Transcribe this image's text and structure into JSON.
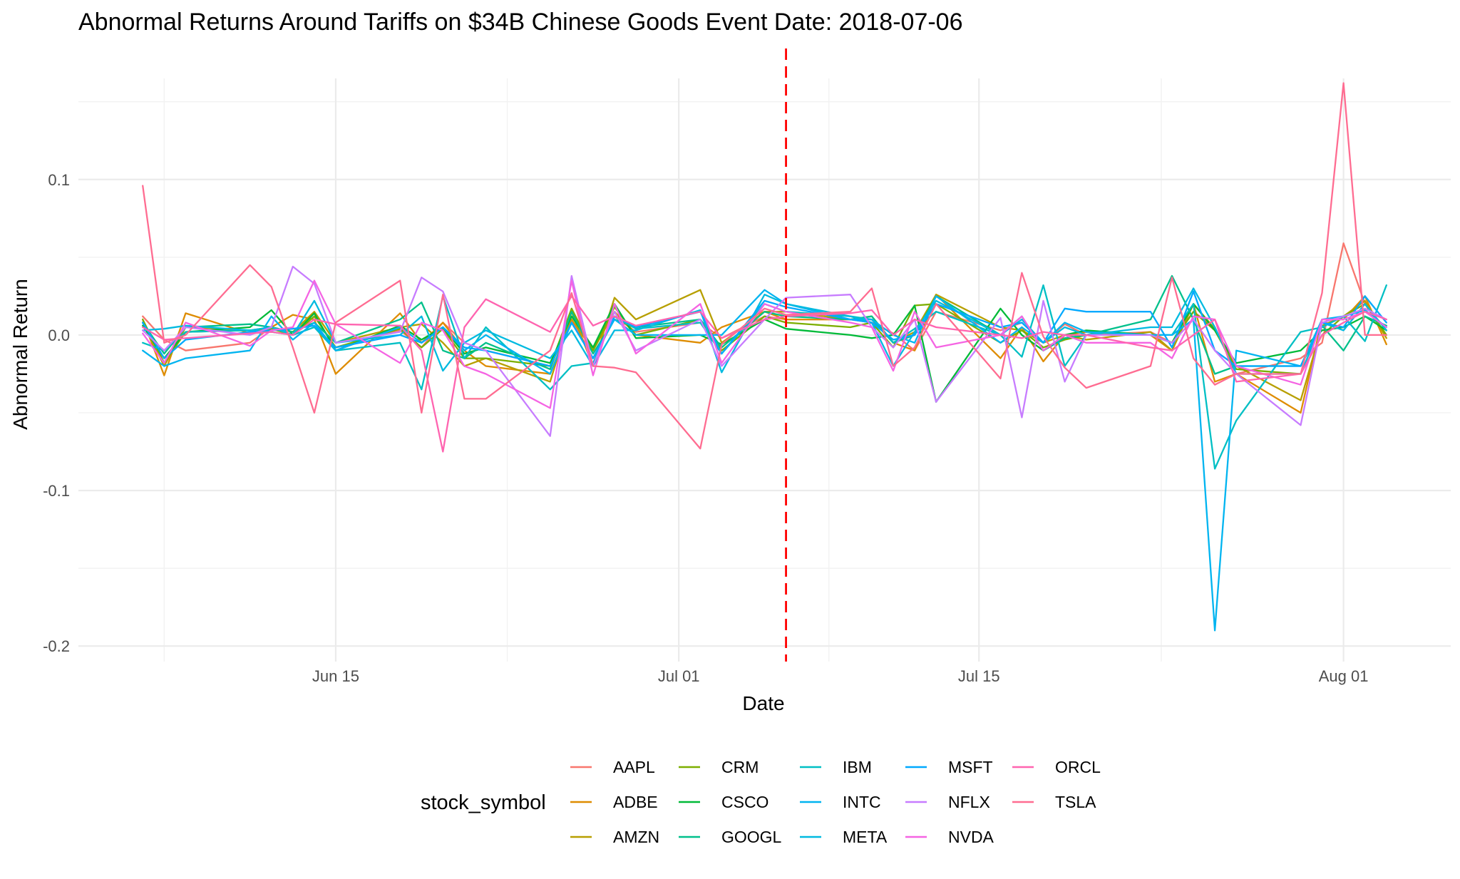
{
  "chart_data": {
    "type": "line",
    "title": "Abnormal Returns Around Tariffs on $34B Chinese Goods Event Date: 2018-07-06",
    "xlabel": "Date",
    "ylabel": "Abnormal Return",
    "legend_title": "stock_symbol",
    "legend_position": "bottom",
    "grid": true,
    "event_date": "2018-07-06",
    "event_line_color": "#FF0000",
    "x_type": "date",
    "xlim": [
      "2018-06-03",
      "2018-08-06"
    ],
    "ylim": [
      -0.21,
      0.165
    ],
    "y_ticks": [
      {
        "value": 0.1,
        "label": "0.1"
      },
      {
        "value": 0.0,
        "label": "0.0"
      },
      {
        "value": -0.1,
        "label": "-0.1"
      },
      {
        "value": -0.2,
        "label": "-0.2"
      }
    ],
    "x_ticks": [
      {
        "date": "2018-06-15",
        "label": "Jun 15"
      },
      {
        "date": "2018-07-01",
        "label": "Jul 01"
      },
      {
        "date": "2018-07-15",
        "label": "Jul 15"
      },
      {
        "date": "2018-08-01",
        "label": "Aug 01"
      }
    ],
    "dates": [
      "2018-06-06",
      "2018-06-07",
      "2018-06-08",
      "2018-06-11",
      "2018-06-12",
      "2018-06-13",
      "2018-06-14",
      "2018-06-15",
      "2018-06-18",
      "2018-06-19",
      "2018-06-20",
      "2018-06-21",
      "2018-06-22",
      "2018-06-25",
      "2018-06-26",
      "2018-06-27",
      "2018-06-28",
      "2018-06-29",
      "2018-07-02",
      "2018-07-03",
      "2018-07-05",
      "2018-07-06",
      "2018-07-09",
      "2018-07-10",
      "2018-07-11",
      "2018-07-12",
      "2018-07-13",
      "2018-07-16",
      "2018-07-17",
      "2018-07-18",
      "2018-07-19",
      "2018-07-20",
      "2018-07-23",
      "2018-07-24",
      "2018-07-25",
      "2018-07-26",
      "2018-07-27",
      "2018-07-30",
      "2018-07-31",
      "2018-08-01",
      "2018-08-02",
      "2018-08-03"
    ],
    "series": [
      {
        "name": "AAPL",
        "color": "#F8766D",
        "values": [
          0.012,
          -0.003,
          -0.01,
          -0.005,
          0.005,
          0.0,
          0.012,
          -0.008,
          0.003,
          -0.008,
          0.008,
          -0.005,
          -0.01,
          -0.02,
          0.01,
          -0.015,
          0.012,
          0.002,
          0.008,
          -0.002,
          0.012,
          0.01,
          0.01,
          0.008,
          0.001,
          -0.01,
          0.015,
          0.003,
          0.008,
          -0.005,
          0.007,
          0.0,
          0.002,
          -0.005,
          0.015,
          0.005,
          -0.025,
          -0.015,
          -0.005,
          0.059,
          0.02,
          0.003
        ]
      },
      {
        "name": "ADBE",
        "color": "#DE8C00",
        "values": [
          0.01,
          -0.026,
          0.014,
          0.001,
          0.005,
          0.013,
          0.01,
          -0.025,
          0.014,
          -0.005,
          0.008,
          -0.01,
          -0.02,
          -0.025,
          0.01,
          -0.01,
          0.015,
          0.0,
          -0.005,
          0.005,
          0.015,
          0.01,
          0.01,
          0.012,
          -0.005,
          -0.01,
          0.026,
          -0.015,
          0.005,
          -0.017,
          0.0,
          0.002,
          0.0,
          -0.01,
          0.02,
          -0.03,
          -0.025,
          -0.05,
          0.01,
          0.01,
          0.025,
          -0.006
        ]
      },
      {
        "name": "AMZN",
        "color": "#B79F00",
        "values": [
          0.008,
          -0.02,
          0.005,
          0.003,
          0.005,
          0.002,
          0.015,
          -0.005,
          0.005,
          0.007,
          -0.005,
          -0.02,
          -0.015,
          -0.03,
          0.015,
          -0.02,
          0.024,
          0.01,
          0.029,
          -0.005,
          0.015,
          0.015,
          0.01,
          0.01,
          -0.005,
          0.002,
          0.026,
          0.005,
          0.003,
          -0.005,
          0.0,
          -0.003,
          0.002,
          -0.01,
          0.02,
          0.004,
          -0.02,
          -0.042,
          0.006,
          0.012,
          0.022,
          -0.002
        ]
      },
      {
        "name": "CRM",
        "color": "#7CAE00",
        "values": [
          0.01,
          -0.018,
          0.002,
          0.003,
          0.004,
          0.0,
          0.012,
          -0.008,
          0.004,
          -0.008,
          0.004,
          -0.015,
          -0.015,
          -0.02,
          0.017,
          -0.01,
          0.018,
          0.0,
          0.01,
          -0.01,
          0.012,
          0.008,
          0.005,
          0.008,
          -0.008,
          0.019,
          0.02,
          -0.005,
          0.003,
          -0.008,
          -0.003,
          0.0,
          0.0,
          -0.005,
          0.015,
          0.003,
          -0.022,
          -0.025,
          0.0,
          0.012,
          0.02,
          0.0
        ]
      },
      {
        "name": "CSCO",
        "color": "#00BA38",
        "values": [
          0.006,
          -0.015,
          0.002,
          0.005,
          0.016,
          0.0,
          0.014,
          -0.01,
          0.006,
          -0.003,
          0.005,
          -0.012,
          -0.008,
          -0.018,
          0.012,
          -0.008,
          0.02,
          -0.002,
          0.0,
          -0.006,
          0.01,
          0.004,
          0.0,
          -0.002,
          0.0,
          0.019,
          -0.043,
          0.017,
          0.0,
          -0.01,
          0.0,
          0.003,
          0.0,
          -0.005,
          0.02,
          0.003,
          -0.018,
          -0.01,
          0.003,
          0.005,
          0.012,
          0.003
        ]
      },
      {
        "name": "GOOGL",
        "color": "#00C08B",
        "values": [
          0.008,
          -0.012,
          0.005,
          0.007,
          0.005,
          0.002,
          0.008,
          -0.005,
          0.01,
          0.021,
          -0.01,
          -0.015,
          -0.005,
          -0.022,
          0.015,
          -0.012,
          0.01,
          0.005,
          0.01,
          -0.008,
          0.015,
          0.012,
          0.01,
          0.012,
          -0.005,
          0.0,
          0.025,
          0.0,
          0.012,
          -0.01,
          -0.002,
          0.0,
          0.01,
          0.038,
          0.01,
          -0.025,
          -0.02,
          -0.02,
          0.006,
          -0.01,
          0.012,
          0.006
        ]
      },
      {
        "name": "IBM",
        "color": "#00BFC4",
        "values": [
          -0.005,
          -0.01,
          0.002,
          0.003,
          0.002,
          0.0,
          0.005,
          -0.01,
          -0.005,
          -0.035,
          0.025,
          -0.015,
          0.005,
          -0.035,
          -0.02,
          -0.018,
          0.012,
          0.004,
          0.008,
          -0.012,
          0.02,
          0.015,
          0.012,
          0.01,
          -0.005,
          0.004,
          0.015,
          0.0,
          -0.014,
          0.032,
          -0.02,
          0.0,
          0.0,
          0.0,
          0.02,
          -0.086,
          -0.055,
          0.002,
          0.005,
          0.012,
          -0.004,
          0.032
        ]
      },
      {
        "name": "INTC",
        "color": "#00B4F0",
        "values": [
          -0.01,
          -0.02,
          -0.015,
          -0.01,
          0.012,
          -0.003,
          0.008,
          -0.01,
          0.005,
          -0.005,
          0.005,
          -0.01,
          0.0,
          -0.025,
          0.008,
          -0.015,
          0.01,
          0.0,
          0.0,
          0.0,
          0.029,
          0.02,
          0.01,
          0.01,
          0.0,
          -0.005,
          0.025,
          -0.005,
          0.005,
          -0.005,
          0.008,
          0.002,
          0.0,
          0.0,
          0.01,
          -0.19,
          -0.01,
          -0.02,
          0.01,
          0.012,
          0.016,
          0.005
        ]
      },
      {
        "name": "META",
        "color": "#00BAE0",
        "values": [
          0.003,
          0.004,
          0.006,
          0.003,
          0.005,
          0.0,
          0.022,
          -0.005,
          0.0,
          0.012,
          -0.023,
          -0.005,
          0.003,
          -0.015,
          0.003,
          -0.02,
          0.003,
          0.003,
          0.016,
          -0.024,
          0.026,
          0.02,
          0.012,
          0.008,
          -0.02,
          0.002,
          0.022,
          0.0,
          0.01,
          -0.005,
          0.005,
          0.0,
          0.005,
          0.005,
          0.03,
          0.005,
          -0.025,
          -0.025,
          0.008,
          0.003,
          0.02,
          0.003
        ]
      },
      {
        "name": "MSFT",
        "color": "#00A9FF",
        "values": [
          0.008,
          -0.015,
          -0.003,
          0.002,
          0.003,
          0.004,
          0.006,
          -0.008,
          0.0,
          -0.005,
          0.005,
          -0.008,
          -0.01,
          -0.02,
          0.008,
          -0.015,
          0.012,
          0.005,
          0.015,
          -0.012,
          0.022,
          0.018,
          0.01,
          0.008,
          -0.003,
          0.0,
          0.02,
          0.005,
          0.008,
          -0.005,
          0.017,
          0.015,
          0.015,
          -0.008,
          0.028,
          -0.01,
          -0.02,
          -0.02,
          0.008,
          0.005,
          0.025,
          0.008
        ]
      },
      {
        "name": "NFLX",
        "color": "#C77CFF",
        "values": [
          0.003,
          -0.01,
          0.005,
          0.0,
          0.005,
          0.044,
          0.033,
          -0.005,
          0.002,
          0.037,
          0.028,
          -0.005,
          -0.01,
          -0.065,
          0.038,
          -0.02,
          0.015,
          -0.01,
          0.01,
          -0.02,
          0.01,
          0.024,
          0.026,
          0.005,
          -0.008,
          0.01,
          -0.043,
          0.011,
          -0.053,
          0.022,
          -0.03,
          0.0,
          0.0,
          -0.005,
          0.01,
          -0.01,
          -0.025,
          -0.058,
          0.008,
          0.012,
          0.017,
          0.01
        ]
      },
      {
        "name": "NVDA",
        "color": "#F564E3",
        "values": [
          0.001,
          -0.018,
          0.008,
          -0.007,
          0.003,
          0.005,
          0.035,
          0.007,
          -0.018,
          0.008,
          0.003,
          -0.02,
          -0.025,
          -0.047,
          0.035,
          -0.026,
          0.02,
          -0.012,
          0.02,
          -0.018,
          0.02,
          0.015,
          0.008,
          0.005,
          -0.023,
          0.015,
          -0.008,
          0.0,
          0.012,
          -0.01,
          0.0,
          -0.005,
          -0.005,
          -0.015,
          0.012,
          0.01,
          -0.02,
          -0.032,
          0.01,
          0.01,
          0.015,
          0.005
        ]
      },
      {
        "name": "ORCL",
        "color": "#FF64B0",
        "values": [
          0.005,
          -0.003,
          -0.002,
          0.001,
          0.002,
          0.0,
          0.01,
          0.007,
          0.006,
          -0.01,
          -0.075,
          0.005,
          0.023,
          0.002,
          0.025,
          0.006,
          0.012,
          0.006,
          0.015,
          -0.002,
          0.01,
          0.012,
          0.014,
          0.016,
          0.0,
          0.01,
          0.005,
          0.0,
          -0.002,
          0.002,
          0.0,
          0.0,
          -0.008,
          -0.01,
          0.0,
          0.01,
          -0.03,
          -0.025,
          0.0,
          0.008,
          0.015,
          0.01
        ]
      },
      {
        "name": "TSLA",
        "color": "#FF6C91",
        "values": [
          0.096,
          -0.005,
          0.0,
          0.045,
          0.031,
          -0.008,
          -0.05,
          0.008,
          0.035,
          -0.05,
          0.026,
          -0.041,
          -0.041,
          -0.01,
          0.027,
          -0.02,
          -0.021,
          -0.024,
          -0.073,
          -0.006,
          0.017,
          0.013,
          0.015,
          0.03,
          -0.02,
          -0.008,
          0.02,
          -0.028,
          0.04,
          -0.001,
          -0.021,
          -0.034,
          -0.02,
          0.037,
          -0.015,
          -0.032,
          -0.025,
          -0.025,
          0.027,
          0.162,
          0.0,
          0.0
        ]
      }
    ]
  }
}
